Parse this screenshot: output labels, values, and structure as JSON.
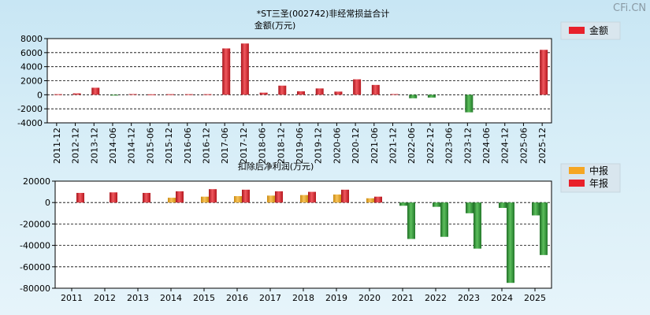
{
  "watermark": "CFi.CN",
  "chart_data": [
    {
      "type": "bar",
      "title": "*ST三圣(002742)非经常损益合计",
      "subtitle": "金额(万元)",
      "categories": [
        "2011-12",
        "2012-12",
        "2013-12",
        "2014-06",
        "2014-12",
        "2015-06",
        "2015-12",
        "2016-06",
        "2016-12",
        "2017-06",
        "2017-12",
        "2018-06",
        "2018-12",
        "2019-06",
        "2019-12",
        "2020-06",
        "2020-12",
        "2021-06",
        "2021-12",
        "2022-06",
        "2022-12",
        "2023-06",
        "2023-12",
        "2024-06",
        "2024-12",
        "2025-06",
        "2025-12"
      ],
      "series": [
        {
          "name": "金额",
          "color": "#e8202a",
          "values": [
            80,
            200,
            1000,
            -80,
            100,
            60,
            80,
            80,
            80,
            6600,
            7300,
            300,
            1300,
            500,
            900,
            450,
            2200,
            1400,
            100,
            -500,
            -400,
            null,
            -2500,
            null,
            null,
            null,
            6400
          ]
        }
      ],
      "ylim": [
        -4000,
        8000
      ],
      "yticks": [
        8000,
        6000,
        4000,
        2000,
        0,
        -2000,
        -4000
      ],
      "grid": true,
      "legend": "top-right"
    },
    {
      "type": "bar",
      "title": "扣除后净利润(万元)",
      "categories": [
        "2011",
        "2012",
        "2013",
        "2014",
        "2015",
        "2016",
        "2017",
        "2018",
        "2019",
        "2020",
        "2021",
        "2022",
        "2023",
        "2024",
        "2025"
      ],
      "series": [
        {
          "name": "中报",
          "color": "#f5a623",
          "values": [
            null,
            null,
            null,
            4500,
            5500,
            6000,
            6500,
            7000,
            7500,
            4000,
            -3000,
            -4000,
            -10000,
            -5000,
            -12000
          ]
        },
        {
          "name": "年报",
          "color": "#e8202a",
          "values": [
            9000,
            9500,
            9000,
            10500,
            12500,
            12000,
            10500,
            10000,
            12000,
            5500,
            -34000,
            -32000,
            -43000,
            -75000,
            -49000
          ]
        }
      ],
      "ylim": [
        -80000,
        20000
      ],
      "yticks": [
        20000,
        0,
        -20000,
        -40000,
        -60000,
        -80000
      ],
      "grid": true,
      "legend": "top-right"
    }
  ]
}
